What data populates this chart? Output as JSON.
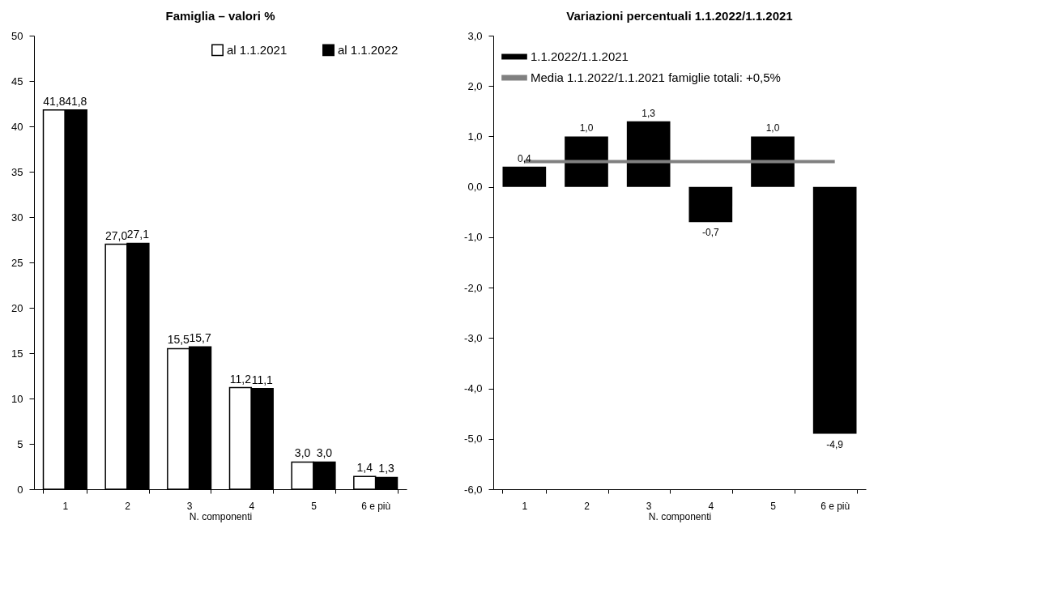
{
  "chart_data": [
    {
      "type": "bar",
      "title": "Famiglia – valori %",
      "xlabel": "N. componenti",
      "categories": [
        "1",
        "2",
        "3",
        "4",
        "5",
        "6 e più"
      ],
      "series": [
        {
          "name": "al 1.1.2021",
          "color": "#ffffff",
          "values": [
            41.8,
            27.0,
            15.5,
            11.2,
            3.0,
            1.4
          ],
          "value_labels": [
            "41,8",
            "27,0",
            "15,5",
            "11,2",
            "3,0",
            "1,4"
          ]
        },
        {
          "name": "al 1.1.2022",
          "color": "#000000",
          "values": [
            41.8,
            27.1,
            15.7,
            11.1,
            3.0,
            1.3
          ],
          "value_labels": [
            "41,8",
            "27,1",
            "15,7",
            "11,1",
            "3,0",
            "1,3"
          ]
        }
      ],
      "ylim": [
        0,
        50
      ],
      "yticks": [
        0,
        5,
        10,
        15,
        20,
        25,
        30,
        35,
        40,
        45,
        50
      ],
      "grid": false,
      "legend": "top right"
    },
    {
      "type": "bar",
      "title": "Variazioni percentuali 1.1.2022/1.1.2021",
      "xlabel": "N. componenti",
      "categories": [
        "1",
        "2",
        "3",
        "4",
        "5",
        "6 e più"
      ],
      "series": [
        {
          "name": "1.1.2022/1.1.2021",
          "color": "#000000",
          "values": [
            0.4,
            1.0,
            1.3,
            -0.7,
            1.0,
            -4.9
          ],
          "value_labels": [
            "0,4",
            "1,0",
            "1,3",
            "-0,7",
            "1,0",
            "-4,9"
          ]
        }
      ],
      "ref_lines": [
        {
          "axis": "y",
          "value": 0.5,
          "label": "Media 1.1.2022/1.1.2021 famiglie totali: +0,5%",
          "color": "#808080"
        }
      ],
      "ylim": [
        -6,
        3
      ],
      "yticks": [
        {
          "value": -6,
          "label": "-6,0"
        },
        {
          "value": -5,
          "label": "-5,0"
        },
        {
          "value": -4,
          "label": "-4,0"
        },
        {
          "value": -3,
          "label": "-3,0"
        },
        {
          "value": -2,
          "label": "-2,0"
        },
        {
          "value": -1,
          "label": "-1,0"
        },
        {
          "value": 0,
          "label": "0,0"
        },
        {
          "value": 1,
          "label": "1,0"
        },
        {
          "value": 2,
          "label": "2,0"
        },
        {
          "value": 3,
          "label": "3,0"
        }
      ],
      "grid": false,
      "legend": "top left"
    }
  ]
}
